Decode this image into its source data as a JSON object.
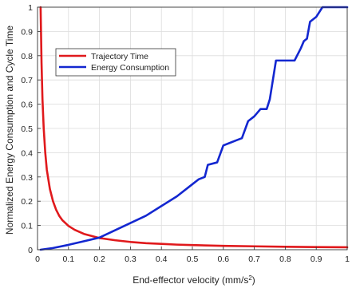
{
  "chart_data": {
    "type": "line",
    "xlabel": "End-effector velocity (mm/s",
    "xlabel_superscript": "2",
    "xlabel_suffix": ")",
    "ylabel": "Normalized Energy Consumption and Cycle Time",
    "xlim": [
      0,
      1
    ],
    "ylim": [
      0,
      1
    ],
    "xticks": [
      "0",
      "0.1",
      "0.2",
      "0.3",
      "0.4",
      "0.5",
      "0.6",
      "0.7",
      "0.8",
      "0.9",
      "1"
    ],
    "yticks": [
      "0",
      "0.1",
      "0.2",
      "0.3",
      "0.4",
      "0.5",
      "0.6",
      "0.7",
      "0.8",
      "0.9",
      "1"
    ],
    "grid": true,
    "legend_position": "upper-left",
    "series": [
      {
        "name": "Trajectory Time",
        "color": "#e0191c",
        "x": [
          0.01,
          0.013,
          0.016,
          0.02,
          0.025,
          0.03,
          0.04,
          0.05,
          0.06,
          0.07,
          0.08,
          0.1,
          0.12,
          0.15,
          0.2,
          0.25,
          0.3,
          0.35,
          0.4,
          0.45,
          0.5,
          0.6,
          0.7,
          0.8,
          0.9,
          1.0
        ],
        "values": [
          1.0,
          0.77,
          0.62,
          0.5,
          0.4,
          0.33,
          0.25,
          0.2,
          0.165,
          0.14,
          0.122,
          0.098,
          0.082,
          0.065,
          0.048,
          0.039,
          0.032,
          0.027,
          0.024,
          0.021,
          0.019,
          0.016,
          0.014,
          0.012,
          0.011,
          0.01
        ]
      },
      {
        "name": "Energy Consumption",
        "color": "#1327d0",
        "x": [
          0.01,
          0.05,
          0.1,
          0.15,
          0.2,
          0.25,
          0.3,
          0.35,
          0.4,
          0.45,
          0.5,
          0.52,
          0.54,
          0.55,
          0.58,
          0.6,
          0.62,
          0.64,
          0.66,
          0.68,
          0.7,
          0.72,
          0.74,
          0.75,
          0.77,
          0.8,
          0.83,
          0.85,
          0.86,
          0.87,
          0.88,
          0.9,
          0.92,
          1.0
        ],
        "values": [
          0.0,
          0.007,
          0.02,
          0.035,
          0.05,
          0.08,
          0.11,
          0.14,
          0.18,
          0.22,
          0.27,
          0.29,
          0.3,
          0.35,
          0.36,
          0.43,
          0.44,
          0.45,
          0.46,
          0.53,
          0.55,
          0.58,
          0.58,
          0.62,
          0.78,
          0.78,
          0.78,
          0.83,
          0.86,
          0.87,
          0.94,
          0.96,
          1.0,
          1.0
        ]
      }
    ]
  }
}
